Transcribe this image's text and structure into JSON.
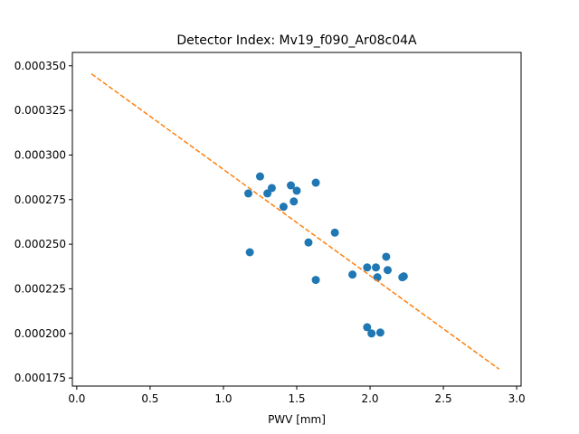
{
  "chart_data": {
    "type": "scatter",
    "title": "Detector Index: Mv19_f090_Ar08c04A",
    "xlabel": "PWV [mm]",
    "ylabel": "",
    "xlim": [
      -0.03,
      3.03
    ],
    "ylim": [
      0.0001705,
      0.0003575
    ],
    "x_ticks": [
      {
        "value": 0.0,
        "label": "0.0"
      },
      {
        "value": 0.5,
        "label": "0.5"
      },
      {
        "value": 1.0,
        "label": "1.0"
      },
      {
        "value": 1.5,
        "label": "1.5"
      },
      {
        "value": 2.0,
        "label": "2.0"
      },
      {
        "value": 2.5,
        "label": "2.5"
      },
      {
        "value": 3.0,
        "label": "3.0"
      }
    ],
    "y_ticks": [
      {
        "value": 0.000175,
        "label": "0.000175"
      },
      {
        "value": 0.0002,
        "label": "0.000200"
      },
      {
        "value": 0.000225,
        "label": "0.000225"
      },
      {
        "value": 0.00025,
        "label": "0.000250"
      },
      {
        "value": 0.000275,
        "label": "0.000275"
      },
      {
        "value": 0.0003,
        "label": "0.000300"
      },
      {
        "value": 0.000325,
        "label": "0.000325"
      },
      {
        "value": 0.00035,
        "label": "0.000350"
      }
    ],
    "grid": false,
    "series": [
      {
        "name": "measurements",
        "kind": "scatter",
        "color": "#1f77b4",
        "points": [
          {
            "x": 1.17,
            "y": 0.0002785
          },
          {
            "x": 1.25,
            "y": 0.000288
          },
          {
            "x": 1.3,
            "y": 0.0002785
          },
          {
            "x": 1.33,
            "y": 0.0002815
          },
          {
            "x": 1.41,
            "y": 0.000271
          },
          {
            "x": 1.46,
            "y": 0.000283
          },
          {
            "x": 1.48,
            "y": 0.000274
          },
          {
            "x": 1.5,
            "y": 0.00028
          },
          {
            "x": 1.63,
            "y": 0.0002845
          },
          {
            "x": 1.58,
            "y": 0.000251
          },
          {
            "x": 1.63,
            "y": 0.00023
          },
          {
            "x": 1.18,
            "y": 0.0002455
          },
          {
            "x": 1.76,
            "y": 0.0002565
          },
          {
            "x": 1.88,
            "y": 0.000233
          },
          {
            "x": 1.98,
            "y": 0.000237
          },
          {
            "x": 2.04,
            "y": 0.000237
          },
          {
            "x": 2.05,
            "y": 0.0002315
          },
          {
            "x": 2.11,
            "y": 0.000243
          },
          {
            "x": 2.12,
            "y": 0.0002355
          },
          {
            "x": 2.23,
            "y": 0.000232
          },
          {
            "x": 2.22,
            "y": 0.0002315
          },
          {
            "x": 1.98,
            "y": 0.0002035
          },
          {
            "x": 2.01,
            "y": 0.0002
          },
          {
            "x": 2.07,
            "y": 0.0002005
          }
        ]
      },
      {
        "name": "fit",
        "kind": "line",
        "style": "dashed",
        "color": "#ff7f0e",
        "points": [
          {
            "x": 0.1,
            "y": 0.0003455
          },
          {
            "x": 2.88,
            "y": 0.00018
          }
        ]
      }
    ]
  }
}
